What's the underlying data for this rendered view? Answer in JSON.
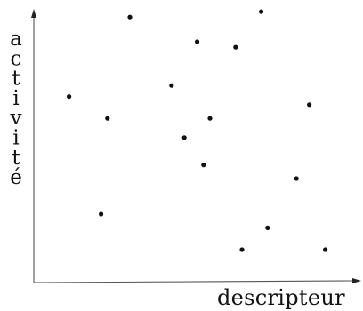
{
  "chart_data": {
    "type": "scatter",
    "title": "",
    "xlabel": "descripteur",
    "ylabel": "activité",
    "xlim": [
      0,
      10
    ],
    "ylim": [
      0,
      10
    ],
    "grid": false,
    "legend": "none",
    "points": [
      {
        "x": 1.1,
        "y": 6.8
      },
      {
        "x": 2.3,
        "y": 6.0
      },
      {
        "x": 2.1,
        "y": 2.5
      },
      {
        "x": 3.0,
        "y": 9.7
      },
      {
        "x": 4.3,
        "y": 7.2
      },
      {
        "x": 4.7,
        "y": 5.3
      },
      {
        "x": 5.1,
        "y": 8.8
      },
      {
        "x": 5.3,
        "y": 4.3
      },
      {
        "x": 5.5,
        "y": 6.0
      },
      {
        "x": 6.3,
        "y": 8.6
      },
      {
        "x": 6.5,
        "y": 1.2
      },
      {
        "x": 7.1,
        "y": 9.9
      },
      {
        "x": 7.3,
        "y": 2.0
      },
      {
        "x": 8.2,
        "y": 3.8
      },
      {
        "x": 8.6,
        "y": 6.5
      },
      {
        "x": 9.1,
        "y": 1.2
      }
    ]
  }
}
